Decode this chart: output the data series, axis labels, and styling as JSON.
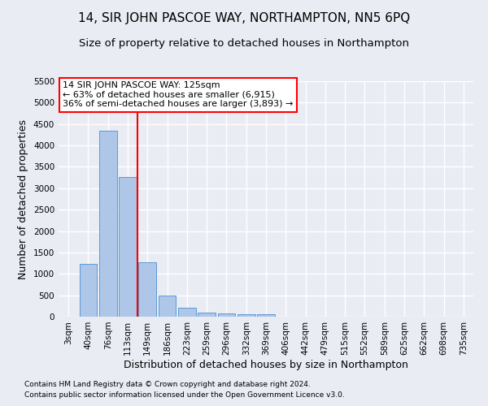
{
  "title": "14, SIR JOHN PASCOE WAY, NORTHAMPTON, NN5 6PQ",
  "subtitle": "Size of property relative to detached houses in Northampton",
  "xlabel": "Distribution of detached houses by size in Northampton",
  "ylabel": "Number of detached properties",
  "footnote1": "Contains HM Land Registry data © Crown copyright and database right 2024.",
  "footnote2": "Contains public sector information licensed under the Open Government Licence v3.0.",
  "categories": [
    "3sqm",
    "40sqm",
    "76sqm",
    "113sqm",
    "149sqm",
    "186sqm",
    "223sqm",
    "259sqm",
    "296sqm",
    "332sqm",
    "369sqm",
    "406sqm",
    "442sqm",
    "479sqm",
    "515sqm",
    "552sqm",
    "589sqm",
    "625sqm",
    "662sqm",
    "698sqm",
    "735sqm"
  ],
  "values": [
    0,
    1230,
    4340,
    3270,
    1270,
    490,
    210,
    90,
    70,
    55,
    55,
    0,
    0,
    0,
    0,
    0,
    0,
    0,
    0,
    0,
    0
  ],
  "bar_color": "#aec6e8",
  "bar_edge_color": "#5b9bd5",
  "vline_x": 3.5,
  "vline_color": "red",
  "annotation_title": "14 SIR JOHN PASCOE WAY: 125sqm",
  "annotation_line2": "← 63% of detached houses are smaller (6,915)",
  "annotation_line3": "36% of semi-detached houses are larger (3,893) →",
  "annotation_box_color": "#ffffff",
  "annotation_box_edge": "red",
  "ylim": [
    0,
    5500
  ],
  "yticks": [
    0,
    500,
    1000,
    1500,
    2000,
    2500,
    3000,
    3500,
    4000,
    4500,
    5000,
    5500
  ],
  "background_color": "#eaecf4",
  "grid_color": "#ffffff",
  "title_fontsize": 11,
  "subtitle_fontsize": 9.5,
  "label_fontsize": 9,
  "tick_fontsize": 7.5,
  "annotation_fontsize": 8
}
